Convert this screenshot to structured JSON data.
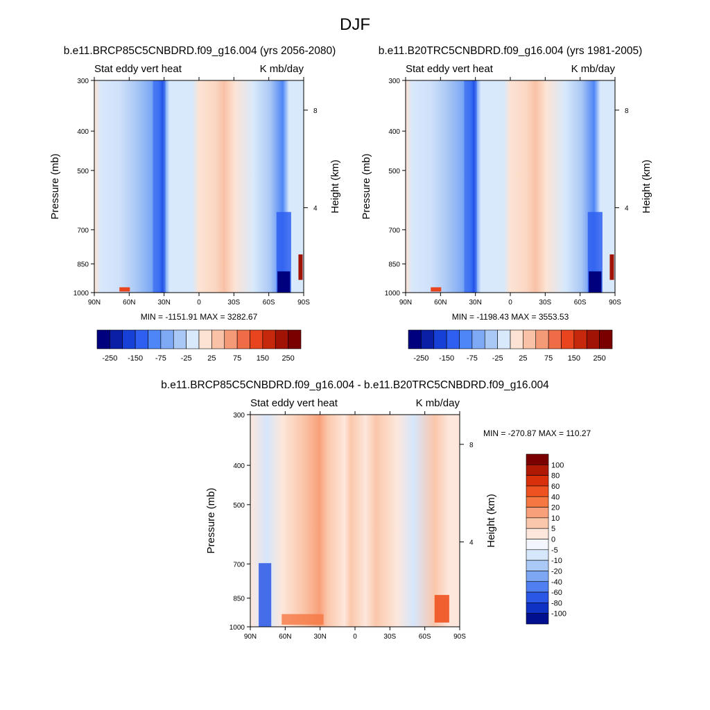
{
  "page_title": "DJF",
  "chart_data": [
    {
      "type": "heatmap",
      "panel": "future",
      "title": "b.e11.BRCP85C5CNBDRD.f09_g16.004 (yrs 2056-2080)",
      "left_label": "Stat eddy vert heat",
      "right_label": "K mb/day",
      "ylabel": "Pressure (mb)",
      "y2label": "Height (km)",
      "x_ticks": [
        "90N",
        "60N",
        "30N",
        "0",
        "30S",
        "60S",
        "90S"
      ],
      "y_ticks": [
        "300",
        "400",
        "500",
        "700",
        "850",
        "1000"
      ],
      "y2_ticks": [
        "8",
        "4"
      ],
      "ylim": [
        1000,
        300
      ],
      "min_max_text": "MIN = -1151.91  MAX = 3282.67",
      "min": -1151.91,
      "max": 3282.67,
      "colorbar_levels": [
        "-250",
        "-150",
        "-75",
        "-25",
        "25",
        "75",
        "150",
        "250"
      ],
      "colorbar_colors": [
        "#00007f",
        "#0a1fa6",
        "#1640d6",
        "#2e5ff0",
        "#4f86f7",
        "#7da9f5",
        "#aac8f5",
        "#d8e9fb",
        "#fde3d4",
        "#f9c1a5",
        "#f59a77",
        "#ef6c46",
        "#e8451f",
        "#c6280b",
        "#a11305",
        "#7a0000"
      ]
    },
    {
      "type": "heatmap",
      "panel": "historical",
      "title": "b.e11.B20TRC5CNBDRD.f09_g16.004 (yrs 1981-2005)",
      "left_label": "Stat eddy vert heat",
      "right_label": "K mb/day",
      "ylabel": "Pressure (mb)",
      "y2label": "Height (km)",
      "x_ticks": [
        "90N",
        "60N",
        "30N",
        "0",
        "30S",
        "60S",
        "90S"
      ],
      "y_ticks": [
        "300",
        "400",
        "500",
        "700",
        "850",
        "1000"
      ],
      "y2_ticks": [
        "8",
        "4"
      ],
      "ylim": [
        1000,
        300
      ],
      "min_max_text": "MIN = -1198.43  MAX = 3553.53",
      "min": -1198.43,
      "max": 3553.53,
      "colorbar_levels": [
        "-250",
        "-150",
        "-75",
        "-25",
        "25",
        "75",
        "150",
        "250"
      ],
      "colorbar_colors": [
        "#00007f",
        "#0a1fa6",
        "#1640d6",
        "#2e5ff0",
        "#4f86f7",
        "#7da9f5",
        "#aac8f5",
        "#d8e9fb",
        "#fde3d4",
        "#f9c1a5",
        "#f59a77",
        "#ef6c46",
        "#e8451f",
        "#c6280b",
        "#a11305",
        "#7a0000"
      ]
    },
    {
      "type": "heatmap",
      "panel": "difference",
      "title": "b.e11.BRCP85C5CNBDRD.f09_g16.004 - b.e11.B20TRC5CNBDRD.f09_g16.004",
      "left_label": "Stat eddy vert heat",
      "right_label": "K mb/day",
      "ylabel": "Pressure (mb)",
      "y2label": "Height (km)",
      "x_ticks": [
        "90N",
        "60N",
        "30N",
        "0",
        "30S",
        "60S",
        "90S"
      ],
      "y_ticks": [
        "300",
        "400",
        "500",
        "700",
        "850",
        "1000"
      ],
      "y2_ticks": [
        "8",
        "4"
      ],
      "ylim": [
        1000,
        300
      ],
      "min_max_text": "MIN = -270.87  MAX = 110.27",
      "min": -270.87,
      "max": 110.27,
      "colorbar_levels": [
        "100",
        "80",
        "60",
        "40",
        "20",
        "10",
        "5",
        "0",
        "-5",
        "-10",
        "-20",
        "-40",
        "-60",
        "-80",
        "-100"
      ],
      "colorbar_colors": [
        "#7a0000",
        "#b01a04",
        "#d9300c",
        "#ee5220",
        "#f57843",
        "#f8a07a",
        "#fbc7ab",
        "#fde7dc",
        "#f3f6fc",
        "#d6e6fb",
        "#abc9f6",
        "#7ea7f3",
        "#4f7ff0",
        "#2a57e6",
        "#0f32c4",
        "#00108f"
      ]
    }
  ]
}
